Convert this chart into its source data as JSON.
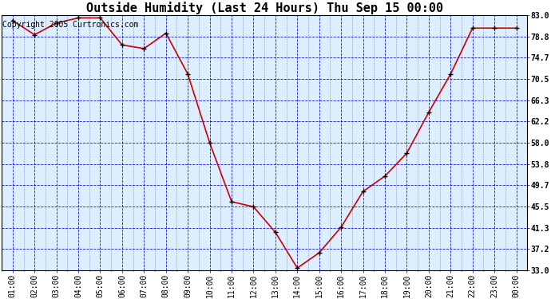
{
  "title": "Outside Humidity (Last 24 Hours) Thu Sep 15 00:00",
  "copyright": "Copyright 2005 Curtronics.com",
  "x_labels": [
    "01:00",
    "02:00",
    "03:00",
    "04:00",
    "05:00",
    "06:00",
    "07:00",
    "08:00",
    "09:00",
    "10:00",
    "11:00",
    "12:00",
    "13:00",
    "14:00",
    "15:00",
    "16:00",
    "17:00",
    "18:00",
    "19:00",
    "20:00",
    "21:00",
    "22:00",
    "23:00",
    "00:00"
  ],
  "y_values": [
    82.0,
    79.2,
    81.5,
    82.5,
    82.5,
    77.2,
    76.5,
    79.5,
    71.5,
    58.0,
    46.5,
    45.5,
    40.5,
    33.5,
    36.5,
    41.5,
    48.5,
    51.5,
    56.0,
    64.0,
    71.5,
    80.5,
    80.5,
    80.5
  ],
  "ylim_min": 33.0,
  "ylim_max": 83.0,
  "yticks": [
    33.0,
    37.2,
    41.3,
    45.5,
    49.7,
    53.8,
    58.0,
    62.2,
    66.3,
    70.5,
    74.7,
    78.8,
    83.0
  ],
  "line_color": "#cc0000",
  "marker_color": "#cc0000",
  "bg_color": "#ffffff",
  "plot_bg_color": "#ddeeff",
  "grid_color_major": "#0000cc",
  "grid_color_minor": "#6666cc",
  "title_fontsize": 11,
  "axis_fontsize": 7,
  "copyright_fontsize": 7
}
